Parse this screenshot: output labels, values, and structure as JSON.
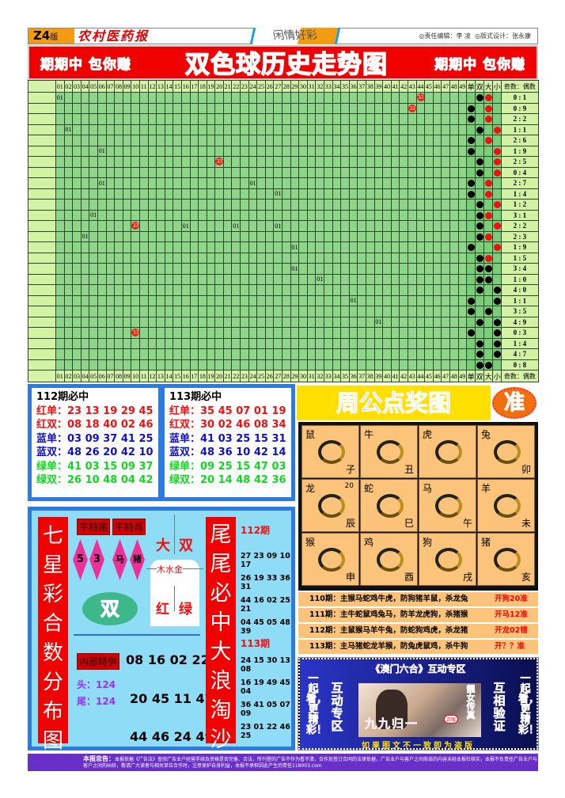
{
  "header": {
    "edition": "Z4",
    "edition_suffix": "版",
    "masthead": "农村医药报",
    "column_a": "闲情",
    "column_b": "好彩",
    "editor": "◎责任编辑：李 凌",
    "designer": "◎版式设计：张永康"
  },
  "banner": {
    "slogan_left": "期期中 包你赚",
    "title": "双色球历史走势图",
    "slogan_right": "期期中 包你赚"
  },
  "trend": {
    "columns": [
      "01",
      "02",
      "03",
      "04",
      "05",
      "06",
      "07",
      "08",
      "09",
      "10",
      "11",
      "12",
      "13",
      "14",
      "15",
      "16",
      "17",
      "18",
      "19",
      "20",
      "21",
      "22",
      "23",
      "24",
      "25",
      "26",
      "27",
      "28",
      "29",
      "30",
      "31",
      "32",
      "33",
      "34",
      "35",
      "36",
      "37",
      "38",
      "39",
      "40",
      "41",
      "42",
      "43",
      "44",
      "45",
      "46",
      "47",
      "48",
      "49"
    ],
    "stat_headers": [
      "单",
      "双",
      "大",
      "小",
      "奇数：偶数"
    ],
    "colors": {
      "cell": "#8fd68a",
      "red_ball": "#e21111",
      "dot_black": "#000000",
      "dot_red": "#f01010"
    },
    "rows": [
      {
        "marks": [
          {
            "col": 1,
            "label": "01"
          },
          {
            "col": 44,
            "label": "33"
          }
        ],
        "parity": "双",
        "size": "大",
        "size_color": "red",
        "ratio": "0 : 1"
      },
      {
        "marks": [
          {
            "col": 43,
            "label": "33"
          }
        ],
        "parity": "单",
        "size": "大",
        "size_color": "red",
        "ratio": "0 : 9"
      },
      {
        "marks": [],
        "parity": "单",
        "size": "大",
        "size_color": "red",
        "ratio": "2 : 2"
      },
      {
        "marks": [
          {
            "col": 2,
            "label": "01"
          }
        ],
        "parity": "双",
        "size": "小",
        "size_color": "red",
        "ratio": "1 : 1"
      },
      {
        "marks": [],
        "parity": "单",
        "size": "大",
        "size_color": "red",
        "ratio": "2 : 6"
      },
      {
        "marks": [
          {
            "col": 6,
            "label": "01"
          }
        ],
        "parity": "单",
        "size": "小",
        "size_color": "red",
        "ratio": "1 : 9"
      },
      {
        "marks": [
          {
            "col": 20,
            "label": "33"
          }
        ],
        "parity": "双",
        "size": "小",
        "size_color": "red",
        "ratio": "2 : 5"
      },
      {
        "marks": [],
        "parity": "双",
        "size": "小",
        "size_color": "red",
        "ratio": "0 : 4"
      },
      {
        "marks": [
          {
            "col": 6,
            "label": "01"
          },
          {
            "col": 24,
            "label": "01"
          }
        ],
        "parity": "单",
        "size": "大",
        "size_color": "red",
        "ratio": "2 : 7"
      },
      {
        "marks": [
          {
            "col": 27,
            "label": "01"
          }
        ],
        "parity": "单",
        "size": "大",
        "size_color": "red",
        "ratio": "1 : 4"
      },
      {
        "marks": [],
        "parity": "双",
        "size": "小",
        "size_color": "red",
        "ratio": "1 : 2"
      },
      {
        "marks": [
          {
            "col": 5,
            "label": "01"
          }
        ],
        "parity": "双",
        "size": "大",
        "size_color": "red",
        "ratio": "3 : 1"
      },
      {
        "marks": [
          {
            "col": 10,
            "label": "33"
          },
          {
            "col": 16,
            "label": "01"
          },
          {
            "col": 22,
            "label": "01"
          },
          {
            "col": 27,
            "label": "01"
          }
        ],
        "parity": "双",
        "size": "小",
        "size_color": "red",
        "ratio": "2 : 2"
      },
      {
        "marks": [
          {
            "col": 4,
            "label": "01"
          }
        ],
        "parity": "双",
        "size": "大",
        "size_color": "red",
        "ratio": "2 : 3"
      },
      {
        "marks": [
          {
            "col": 29,
            "label": "01"
          }
        ],
        "parity": "单",
        "size": "小",
        "size_color": "red",
        "ratio": "1 : 9"
      },
      {
        "marks": [],
        "parity": "双",
        "size": "大",
        "size_color": "red",
        "ratio": "1 : 5"
      },
      {
        "marks": [
          {
            "col": 29,
            "label": "01"
          }
        ],
        "parity": "双",
        "size": "大",
        "size_color": "black",
        "ratio": "3 : 4"
      },
      {
        "marks": [
          {
            "col": 32,
            "label": "01"
          }
        ],
        "parity": "双",
        "size": "大",
        "size_color": "black",
        "ratio": "1 : 0"
      },
      {
        "marks": [],
        "parity": "双",
        "size": "小",
        "size_color": "black",
        "ratio": "4 : 0"
      },
      {
        "marks": [
          {
            "col": 36,
            "label": "01"
          }
        ],
        "parity": "单",
        "size": "小",
        "size_color": "black",
        "ratio": "1 : 1"
      },
      {
        "marks": [],
        "parity": "单",
        "size": "大",
        "size_color": "black",
        "ratio": "3 : 5"
      },
      {
        "marks": [
          {
            "col": 39,
            "label": "01"
          }
        ],
        "parity": "双",
        "size": "小",
        "size_color": "black",
        "ratio": "4 : 9"
      },
      {
        "marks": [
          {
            "col": 10,
            "label": "33"
          }
        ],
        "parity": "单",
        "size": "小",
        "size_color": "black",
        "ratio": "0 : 3"
      },
      {
        "marks": [],
        "parity": "双",
        "size": "小",
        "size_color": "black",
        "ratio": "1 : 4"
      },
      {
        "marks": [],
        "parity": "双",
        "size": "小",
        "size_color": "black",
        "ratio": "4 : 7"
      },
      {
        "marks": [],
        "parity": "双",
        "size": "大",
        "size_color": "black",
        "ratio": "0 : 8"
      }
    ]
  },
  "predictions": [
    {
      "title": "112期必中",
      "lines": [
        {
          "label": "红单：",
          "nums": "23 13 19 29 45",
          "color": "red"
        },
        {
          "label": "红双：",
          "nums": "08 18 40 02 46",
          "color": "red"
        },
        {
          "label": "蓝单：",
          "nums": "03 09 37 41 25",
          "color": "blue"
        },
        {
          "label": "蓝双：",
          "nums": "48 26 20 42 10",
          "color": "blue"
        },
        {
          "label": "绿单：",
          "nums": "41 03 15 09 37",
          "color": "green"
        },
        {
          "label": "绿双：",
          "nums": "26 10 48 04 42",
          "color": "green"
        }
      ]
    },
    {
      "title": "113期必中",
      "lines": [
        {
          "label": "红单：",
          "nums": "35 45 07 01 19",
          "color": "red"
        },
        {
          "label": "红双：",
          "nums": "30 02 46 08 34",
          "color": "red"
        },
        {
          "label": "蓝单：",
          "nums": "41 03 25 15 31",
          "color": "blue"
        },
        {
          "label": "蓝双：",
          "nums": "48 36 10 42 14",
          "color": "blue"
        },
        {
          "label": "绿单：",
          "nums": "09 25 15 47 03",
          "color": "green"
        },
        {
          "label": "绿双：",
          "nums": "20 14 48 42 36",
          "color": "green"
        }
      ]
    }
  ],
  "seven": {
    "side_title": "七星彩合数分布图",
    "tag_tail": "平特尾",
    "tag_zodiac": "平特肖",
    "tail_a": "5",
    "tail_b": "3",
    "zod_a": "马",
    "zod_b": "猪",
    "big": "大",
    "double": "双",
    "elements": "木水金",
    "red": "红",
    "green": "绿",
    "oval": "双",
    "inside_tag": "内部特供",
    "row1": "08 16 02 22",
    "row2": "20 45 11 47",
    "row3": "44 46 24 49",
    "head": "头：124",
    "tail": "尾：124",
    "right_title": "尾尾必中大浪淘沙",
    "p112": "112期",
    "p112_rows": [
      "27 23 09 10 17",
      "26 19 33 36 31",
      "44 16 02 25 21",
      "04 45 05 48 39"
    ],
    "p113": "113期",
    "p113_rows": [
      "24 15 30 13 08",
      "16 19 49 45 04",
      "36 41 05 07 09",
      "23 01 22 46 25"
    ]
  },
  "zodiac": {
    "title": "周公点奖图",
    "badge": "准",
    "cells": [
      {
        "name": "鼠",
        "branch": "子"
      },
      {
        "name": "牛",
        "branch": "丑"
      },
      {
        "name": "虎",
        "branch": ""
      },
      {
        "name": "兔",
        "branch": "卯"
      },
      {
        "name": "龙",
        "branch": "辰",
        "num": "20"
      },
      {
        "name": "蛇",
        "branch": "巳"
      },
      {
        "name": "马",
        "branch": "午"
      },
      {
        "name": "羊",
        "branch": "未"
      },
      {
        "name": "猴",
        "branch": "申"
      },
      {
        "name": "鸡",
        "branch": "酉"
      },
      {
        "name": "狗",
        "branch": "戌"
      },
      {
        "name": "猪",
        "branch": "亥"
      }
    ],
    "history": [
      {
        "text": "110期：主猴马蛇鸡牛虎，防狗猪羊鼠，杀龙兔",
        "result": "开狗20准"
      },
      {
        "text": "111期：主牛蛇鼠鸡兔马，防羊龙虎狗，杀猪猴",
        "result": "开马12准"
      },
      {
        "text": "112期：主鼠猴马羊牛兔，防蛇狗鸡虎，杀龙猪",
        "result": "开龙02错"
      },
      {
        "text": "113期：主马猪蛇龙羊猴，防兔虎鼠鸡，杀牛狗",
        "result": "开？？准"
      }
    ]
  },
  "ad": {
    "title": "《澳门六合》互动专区",
    "left_a": "一起看，更精彩！",
    "left_b": "互动专区",
    "right_a": "互相验证",
    "right_b": "一起看，更精彩！",
    "photo_tag": "靓女传真",
    "photo_text": "九九归一",
    "badge": "正版",
    "bottom": "如果图文不一致即为盗版"
  },
  "footer": {
    "label": "本报忠告：",
    "text": "本报依据《广告法》查验广告业户经营手续及资格是否完备、合法，所刊登的广告不作为看不清，合作及签订合同的法律依据，广告业户与客户之间商谈的内容未经本报社核实，本报不负责任广告业户与客户之间的纠纷，敬请广大读者与相关单位合作时，注意保护自身利益，本报不承担因此产生的责任118003.com"
  }
}
